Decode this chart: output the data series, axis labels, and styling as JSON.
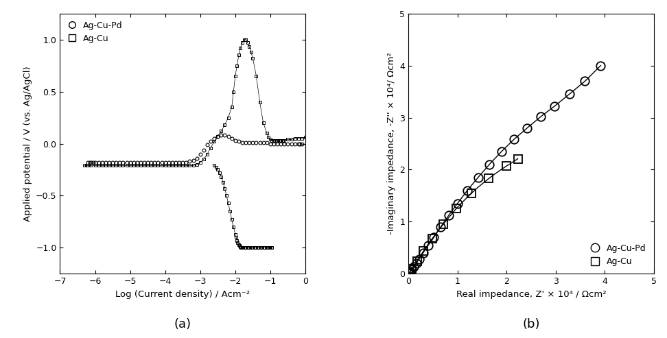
{
  "panel_a": {
    "title": "(a)",
    "xlabel": "Log (Current density) / Acm⁻²",
    "ylabel": "Applied potential / V (vs. Ag/AgCl)",
    "xlim": [
      -7,
      0
    ],
    "ylim": [
      -1.25,
      1.25
    ],
    "xticks": [
      -7,
      -6,
      -5,
      -4,
      -3,
      -2,
      -1,
      0
    ],
    "yticks": [
      -1.0,
      -0.5,
      0.0,
      0.5,
      1.0
    ],
    "AgCuPd_x": [
      -6.2,
      -6.15,
      -6.1,
      -6.05,
      -6.0,
      -5.9,
      -5.8,
      -5.7,
      -5.6,
      -5.5,
      -5.4,
      -5.3,
      -5.2,
      -5.1,
      -5.0,
      -4.9,
      -4.8,
      -4.7,
      -4.6,
      -4.5,
      -4.4,
      -4.3,
      -4.2,
      -4.1,
      -4.0,
      -3.9,
      -3.8,
      -3.7,
      -3.6,
      -3.5,
      -3.4,
      -3.3,
      -3.2,
      -3.1,
      -3.0,
      -2.9,
      -2.8,
      -2.7,
      -2.6,
      -2.5,
      -2.4,
      -2.3,
      -2.2,
      -2.1,
      -2.0,
      -1.9,
      -1.8,
      -1.7,
      -1.6,
      -1.5,
      -1.4,
      -1.3,
      -1.2,
      -1.1,
      -1.0,
      -0.9,
      -0.8,
      -0.7,
      -0.6,
      -0.5,
      -0.4,
      -0.3,
      -0.2,
      -0.15,
      -0.1
    ],
    "AgCuPd_y": [
      -0.18,
      -0.18,
      -0.18,
      -0.18,
      -0.18,
      -0.18,
      -0.18,
      -0.18,
      -0.18,
      -0.18,
      -0.18,
      -0.18,
      -0.18,
      -0.18,
      -0.18,
      -0.18,
      -0.18,
      -0.18,
      -0.18,
      -0.18,
      -0.18,
      -0.18,
      -0.18,
      -0.18,
      -0.18,
      -0.18,
      -0.18,
      -0.18,
      -0.18,
      -0.18,
      -0.18,
      -0.17,
      -0.16,
      -0.14,
      -0.1,
      -0.06,
      -0.01,
      0.02,
      0.05,
      0.07,
      0.08,
      0.08,
      0.07,
      0.05,
      0.03,
      0.02,
      0.01,
      0.01,
      0.01,
      0.01,
      0.01,
      0.01,
      0.01,
      0.01,
      0.0,
      0.0,
      0.0,
      0.0,
      0.0,
      0.0,
      0.0,
      0.0,
      0.0,
      0.0,
      0.0
    ],
    "AgCu_anodic_x": [
      -6.3,
      -6.25,
      -6.2,
      -6.1,
      -6.0,
      -5.9,
      -5.8,
      -5.7,
      -5.6,
      -5.5,
      -5.4,
      -5.3,
      -5.2,
      -5.1,
      -5.0,
      -4.9,
      -4.8,
      -4.7,
      -4.6,
      -4.5,
      -4.4,
      -4.3,
      -4.2,
      -4.1,
      -4.0,
      -3.9,
      -3.8,
      -3.7,
      -3.6,
      -3.5,
      -3.4,
      -3.3,
      -3.2,
      -3.1,
      -3.0,
      -2.9,
      -2.8,
      -2.7,
      -2.6,
      -2.5,
      -2.4,
      -2.3,
      -2.2,
      -2.1,
      -2.05,
      -2.0,
      -1.95,
      -1.9,
      -1.85,
      -1.8,
      -1.75,
      -1.7,
      -1.65,
      -1.6,
      -1.55,
      -1.5,
      -1.4,
      -1.3,
      -1.2,
      -1.1,
      -1.05,
      -1.0,
      -0.95,
      -0.9,
      -0.85,
      -0.8,
      -0.75,
      -0.7,
      -0.65,
      -0.6,
      -0.5,
      -0.4,
      -0.3,
      -0.2,
      -0.1,
      0.0
    ],
    "AgCu_anodic_y": [
      -0.21,
      -0.21,
      -0.21,
      -0.21,
      -0.21,
      -0.21,
      -0.21,
      -0.21,
      -0.21,
      -0.21,
      -0.21,
      -0.21,
      -0.21,
      -0.21,
      -0.21,
      -0.21,
      -0.21,
      -0.21,
      -0.21,
      -0.21,
      -0.21,
      -0.21,
      -0.21,
      -0.21,
      -0.21,
      -0.21,
      -0.21,
      -0.21,
      -0.21,
      -0.21,
      -0.21,
      -0.21,
      -0.21,
      -0.2,
      -0.18,
      -0.15,
      -0.1,
      -0.04,
      0.02,
      0.07,
      0.12,
      0.18,
      0.25,
      0.35,
      0.5,
      0.65,
      0.75,
      0.85,
      0.92,
      0.97,
      1.0,
      1.0,
      0.97,
      0.93,
      0.88,
      0.82,
      0.65,
      0.4,
      0.2,
      0.1,
      0.06,
      0.04,
      0.03,
      0.03,
      0.03,
      0.03,
      0.03,
      0.03,
      0.03,
      0.03,
      0.04,
      0.04,
      0.05,
      0.05,
      0.05,
      0.06
    ],
    "AgCu_cathodic_x": [
      -2.6,
      -2.55,
      -2.5,
      -2.45,
      -2.4,
      -2.35,
      -2.3,
      -2.25,
      -2.2,
      -2.15,
      -2.1,
      -2.05,
      -2.0,
      -1.97,
      -1.95,
      -1.93,
      -1.9,
      -1.87,
      -1.85,
      -1.83,
      -1.8,
      -1.78,
      -1.75,
      -1.72,
      -1.7,
      -1.65,
      -1.6,
      -1.55,
      -1.5,
      -1.45,
      -1.4,
      -1.35,
      -1.3,
      -1.25,
      -1.2,
      -1.15,
      -1.1,
      -1.07,
      -1.05,
      -1.02,
      -1.0,
      -0.95
    ],
    "AgCu_cathodic_y": [
      -0.21,
      -0.23,
      -0.25,
      -0.28,
      -0.32,
      -0.37,
      -0.43,
      -0.5,
      -0.57,
      -0.65,
      -0.73,
      -0.8,
      -0.87,
      -0.9,
      -0.93,
      -0.95,
      -0.97,
      -0.98,
      -0.99,
      -0.995,
      -1.0,
      -1.0,
      -1.0,
      -1.0,
      -1.0,
      -1.0,
      -1.0,
      -1.0,
      -1.0,
      -1.0,
      -1.0,
      -1.0,
      -1.0,
      -1.0,
      -1.0,
      -1.0,
      -1.0,
      -1.0,
      -1.0,
      -1.0,
      -1.0,
      -1.0
    ]
  },
  "panel_b": {
    "title": "(b)",
    "xlabel": "Real impedance, Z' × 10⁴ / Ωcm²",
    "ylabel": "-Imaginary impedance, -Z'' × 10⁴/ Ωcm²",
    "xlim": [
      0,
      5
    ],
    "ylim": [
      0,
      5
    ],
    "xticks": [
      0,
      1,
      2,
      3,
      4,
      5
    ],
    "yticks": [
      0,
      1,
      2,
      3,
      4,
      5
    ],
    "AgCuPd_x": [
      0.005,
      0.012,
      0.025,
      0.045,
      0.072,
      0.11,
      0.16,
      0.22,
      0.3,
      0.4,
      0.52,
      0.66,
      0.82,
      1.0,
      1.2,
      1.42,
      1.65,
      1.9,
      2.15,
      2.42,
      2.7,
      2.98,
      3.28,
      3.6,
      3.92
    ],
    "AgCuPd_y": [
      0.005,
      0.012,
      0.026,
      0.05,
      0.085,
      0.135,
      0.2,
      0.285,
      0.4,
      0.54,
      0.7,
      0.9,
      1.12,
      1.35,
      1.6,
      1.85,
      2.1,
      2.35,
      2.58,
      2.8,
      3.02,
      3.22,
      3.45,
      3.7,
      4.0
    ],
    "AgCu_dense_x": [
      0.002,
      0.005,
      0.008,
      0.012,
      0.018,
      0.025,
      0.035,
      0.048,
      0.065,
      0.085,
      0.11,
      0.14,
      0.175,
      0.215,
      0.26,
      0.31,
      0.365,
      0.425,
      0.49,
      0.56,
      0.635,
      0.715,
      0.8,
      0.89,
      0.98,
      1.08,
      1.18,
      1.29,
      1.4,
      1.52,
      1.64,
      1.76,
      1.88,
      2.0,
      2.12,
      2.23
    ],
    "AgCu_dense_y": [
      0.002,
      0.005,
      0.009,
      0.014,
      0.022,
      0.032,
      0.048,
      0.067,
      0.092,
      0.12,
      0.155,
      0.198,
      0.248,
      0.305,
      0.368,
      0.438,
      0.513,
      0.594,
      0.68,
      0.77,
      0.862,
      0.957,
      1.055,
      1.155,
      1.255,
      1.355,
      1.45,
      1.55,
      1.645,
      1.74,
      1.83,
      1.915,
      1.995,
      2.07,
      2.14,
      2.21
    ],
    "AgCu_marker_x": [
      0.065,
      0.175,
      0.31,
      0.49,
      0.715,
      0.98,
      1.29,
      1.64,
      2.0,
      2.23
    ],
    "AgCu_marker_y": [
      0.092,
      0.248,
      0.438,
      0.68,
      0.957,
      1.255,
      1.55,
      1.83,
      2.07,
      2.21
    ]
  }
}
